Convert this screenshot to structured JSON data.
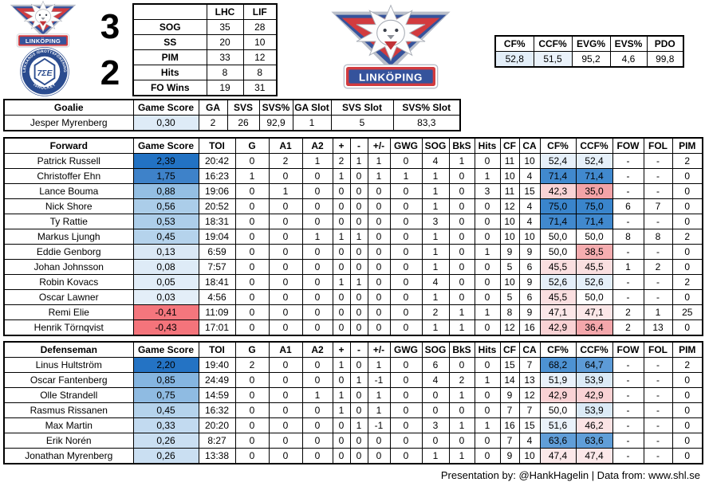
{
  "colors": {
    "scale_blue_strong": "#2272C3",
    "scale_red_strong": "#F4747B",
    "tint_light_blue": "#DEEBF7",
    "brand_red": "#D23B3F",
    "brand_blue": "#35539C",
    "leksands_blue": "#2B4C8F",
    "table_border": "#000000"
  },
  "scoreboard": {
    "home_score": "3",
    "away_score": "2"
  },
  "compare_table": {
    "headers": [
      "",
      "LHC",
      "LIF"
    ],
    "rows": [
      {
        "label": "SOG",
        "lhc": "35",
        "lif": "28"
      },
      {
        "label": "SS",
        "lhc": "20",
        "lif": "10"
      },
      {
        "label": "PIM",
        "lhc": "33",
        "lif": "12"
      },
      {
        "label": "Hits",
        "lhc": "8",
        "lif": "8"
      },
      {
        "label": "FO Wins",
        "lhc": "19",
        "lif": "31"
      }
    ]
  },
  "team_stats": {
    "headers": [
      "CF%",
      "CCF%",
      "EVG%",
      "EVS%",
      "PDO"
    ],
    "values": [
      "52,8",
      "51,5",
      "95,2",
      "4,6",
      "99,8"
    ],
    "value_bgs": [
      "#E3EEF8",
      "#EAF2FA",
      "#FFFFFF",
      "#FFFFFF",
      "#FFFFFF"
    ]
  },
  "goalie_table": {
    "headers": [
      "Goalie",
      "Game Score",
      "GA",
      "SVS",
      "SVS%",
      "GA Slot",
      "SVS Slot",
      "SVS% Slot"
    ],
    "rows": [
      {
        "name": "Jesper Myrenberg",
        "gs": "0,30",
        "gs_bg": "#DEEBF7",
        "values": [
          "2",
          "26",
          "92,9",
          "1",
          "5",
          "83,3"
        ]
      }
    ]
  },
  "skater_headers_common": [
    "Game Score",
    "TOI",
    "G",
    "A1",
    "A2",
    "+",
    "-",
    "+/-",
    "GWG",
    "SOG",
    "BkS",
    "Hits",
    "CF",
    "CA",
    "CF%",
    "CCF%",
    "FOW",
    "FOL",
    "PIM"
  ],
  "forward_table": {
    "title": "Forward",
    "rows": [
      {
        "name": "Patrick Russell",
        "gs": "2,39",
        "gs_bg": "#2272C3",
        "toi": "20:42",
        "g": "0",
        "a1": "2",
        "a2": "1",
        "plus": "2",
        "minus": "1",
        "pm": "1",
        "gwg": "0",
        "sog": "4",
        "bks": "1",
        "hits": "0",
        "cf": "11",
        "ca": "10",
        "cfp": "52,4",
        "cfp_bg": "#E6F0F9",
        "ccfp": "52,4",
        "ccfp_bg": "#E6F0F9",
        "fow": "-",
        "fol": "-",
        "pim": "2"
      },
      {
        "name": "Christoffer Ehn",
        "gs": "1,75",
        "gs_bg": "#3E82C9",
        "toi": "16:23",
        "g": "1",
        "a1": "0",
        "a2": "0",
        "plus": "1",
        "minus": "0",
        "pm": "1",
        "gwg": "1",
        "sog": "1",
        "bks": "0",
        "hits": "1",
        "cf": "10",
        "ca": "4",
        "cfp": "71,4",
        "cfp_bg": "#4189CE",
        "ccfp": "71,4",
        "ccfp_bg": "#4189CE",
        "fow": "-",
        "fol": "-",
        "pim": "0"
      },
      {
        "name": "Lance Bouma",
        "gs": "0,88",
        "gs_bg": "#94BFE3",
        "toi": "19:06",
        "g": "0",
        "a1": "1",
        "a2": "0",
        "plus": "0",
        "minus": "0",
        "pm": "0",
        "gwg": "0",
        "sog": "1",
        "bks": "0",
        "hits": "3",
        "cf": "11",
        "ca": "15",
        "cfp": "42,3",
        "cfp_bg": "#F9D3D5",
        "ccfp": "35,0",
        "ccfp_bg": "#F3A3A7",
        "fow": "-",
        "fol": "-",
        "pim": "0"
      },
      {
        "name": "Nick Shore",
        "gs": "0,56",
        "gs_bg": "#ABCDE9",
        "toi": "20:52",
        "g": "0",
        "a1": "0",
        "a2": "0",
        "plus": "0",
        "minus": "0",
        "pm": "0",
        "gwg": "0",
        "sog": "1",
        "bks": "0",
        "hits": "0",
        "cf": "12",
        "ca": "4",
        "cfp": "75,0",
        "cfp_bg": "#3A85CC",
        "ccfp": "75,0",
        "ccfp_bg": "#3A85CC",
        "fow": "6",
        "fol": "7",
        "pim": "0"
      },
      {
        "name": "Ty Rattie",
        "gs": "0,53",
        "gs_bg": "#ADCEEA",
        "toi": "18:31",
        "g": "0",
        "a1": "0",
        "a2": "0",
        "plus": "0",
        "minus": "0",
        "pm": "0",
        "gwg": "0",
        "sog": "3",
        "bks": "0",
        "hits": "0",
        "cf": "10",
        "ca": "4",
        "cfp": "71,4",
        "cfp_bg": "#4189CE",
        "ccfp": "71,4",
        "ccfp_bg": "#4189CE",
        "fow": "-",
        "fol": "-",
        "pim": "0"
      },
      {
        "name": "Markus Ljungh",
        "gs": "0,45",
        "gs_bg": "#B5D3EC",
        "toi": "19:04",
        "g": "0",
        "a1": "0",
        "a2": "1",
        "plus": "1",
        "minus": "1",
        "pm": "0",
        "gwg": "0",
        "sog": "1",
        "bks": "0",
        "hits": "0",
        "cf": "10",
        "ca": "10",
        "cfp": "50,0",
        "cfp_bg": "#FFFFFF",
        "ccfp": "50,0",
        "ccfp_bg": "#FFFFFF",
        "fow": "8",
        "fol": "8",
        "pim": "2"
      },
      {
        "name": "Eddie Genborg",
        "gs": "0,13",
        "gs_bg": "#DAE8F5",
        "toi": "6:59",
        "g": "0",
        "a1": "0",
        "a2": "0",
        "plus": "0",
        "minus": "0",
        "pm": "0",
        "gwg": "0",
        "sog": "1",
        "bks": "0",
        "hits": "1",
        "cf": "9",
        "ca": "9",
        "cfp": "50,0",
        "cfp_bg": "#FFFFFF",
        "ccfp": "38,5",
        "ccfp_bg": "#F5ADB0",
        "fow": "-",
        "fol": "-",
        "pim": "0"
      },
      {
        "name": "Johan Johnsson",
        "gs": "0,08",
        "gs_bg": "#DEEBF7",
        "toi": "7:57",
        "g": "0",
        "a1": "0",
        "a2": "0",
        "plus": "0",
        "minus": "0",
        "pm": "0",
        "gwg": "0",
        "sog": "1",
        "bks": "0",
        "hits": "0",
        "cf": "5",
        "ca": "6",
        "cfp": "45,5",
        "cfp_bg": "#FADFE0",
        "ccfp": "45,5",
        "ccfp_bg": "#FADFE0",
        "fow": "1",
        "fol": "2",
        "pim": "0"
      },
      {
        "name": "Robin Kovacs",
        "gs": "0,05",
        "gs_bg": "#E1EDF8",
        "toi": "18:41",
        "g": "0",
        "a1": "0",
        "a2": "0",
        "plus": "1",
        "minus": "1",
        "pm": "0",
        "gwg": "0",
        "sog": "4",
        "bks": "0",
        "hits": "0",
        "cf": "10",
        "ca": "9",
        "cfp": "52,6",
        "cfp_bg": "#E5EFF9",
        "ccfp": "52,6",
        "ccfp_bg": "#E5EFF9",
        "fow": "-",
        "fol": "-",
        "pim": "2"
      },
      {
        "name": "Oscar Lawner",
        "gs": "0,03",
        "gs_bg": "#E3EEF8",
        "toi": "4:56",
        "g": "0",
        "a1": "0",
        "a2": "0",
        "plus": "0",
        "minus": "0",
        "pm": "0",
        "gwg": "0",
        "sog": "1",
        "bks": "0",
        "hits": "0",
        "cf": "5",
        "ca": "6",
        "cfp": "45,5",
        "cfp_bg": "#FADFE0",
        "ccfp": "50,0",
        "ccfp_bg": "#FFFFFF",
        "fow": "-",
        "fol": "-",
        "pim": "0"
      },
      {
        "name": "Remi Elie",
        "gs": "-0,41",
        "gs_bg": "#F4767D",
        "toi": "11:09",
        "g": "0",
        "a1": "0",
        "a2": "0",
        "plus": "0",
        "minus": "0",
        "pm": "0",
        "gwg": "0",
        "sog": "2",
        "bks": "1",
        "hits": "1",
        "cf": "8",
        "ca": "9",
        "cfp": "47,1",
        "cfp_bg": "#FBE7E8",
        "ccfp": "47,1",
        "ccfp_bg": "#FBE7E8",
        "fow": "2",
        "fol": "1",
        "pim": "25"
      },
      {
        "name": "Henrik Törnqvist",
        "gs": "-0,43",
        "gs_bg": "#F4747B",
        "toi": "17:01",
        "g": "0",
        "a1": "0",
        "a2": "0",
        "plus": "0",
        "minus": "0",
        "pm": "0",
        "gwg": "0",
        "sog": "1",
        "bks": "1",
        "hits": "0",
        "cf": "12",
        "ca": "16",
        "cfp": "42,9",
        "cfp_bg": "#F9D2D4",
        "ccfp": "36,4",
        "ccfp_bg": "#F4A7AB",
        "fow": "2",
        "fol": "13",
        "pim": "0"
      }
    ]
  },
  "defense_table": {
    "title": "Defenseman",
    "rows": [
      {
        "name": "Linus Hultström",
        "gs": "2,20",
        "gs_bg": "#2473C4",
        "toi": "19:40",
        "g": "2",
        "a1": "0",
        "a2": "0",
        "plus": "1",
        "minus": "0",
        "pm": "1",
        "gwg": "0",
        "sog": "6",
        "bks": "0",
        "hits": "0",
        "cf": "15",
        "ca": "7",
        "cfp": "68,2",
        "cfp_bg": "#4D92D3",
        "ccfp": "64,7",
        "ccfp_bg": "#5D9BD7",
        "fow": "-",
        "fol": "-",
        "pim": "2"
      },
      {
        "name": "Oscar Fantenberg",
        "gs": "0,85",
        "gs_bg": "#85B5E0",
        "toi": "24:49",
        "g": "0",
        "a1": "0",
        "a2": "0",
        "plus": "0",
        "minus": "1",
        "pm": "-1",
        "gwg": "0",
        "sog": "4",
        "bks": "2",
        "hits": "1",
        "cf": "14",
        "ca": "13",
        "cfp": "51,9",
        "cfp_bg": "#E9F1FA",
        "ccfp": "53,9",
        "ccfp_bg": "#DCEAF6",
        "fow": "-",
        "fol": "-",
        "pim": "0"
      },
      {
        "name": "Olle Strandell",
        "gs": "0,75",
        "gs_bg": "#8FBBE2",
        "toi": "14:59",
        "g": "0",
        "a1": "0",
        "a2": "1",
        "plus": "1",
        "minus": "0",
        "pm": "1",
        "gwg": "0",
        "sog": "0",
        "bks": "1",
        "hits": "0",
        "cf": "9",
        "ca": "12",
        "cfp": "42,9",
        "cfp_bg": "#F9D2D4",
        "ccfp": "42,9",
        "ccfp_bg": "#F9D2D4",
        "fow": "-",
        "fol": "-",
        "pim": "0"
      },
      {
        "name": "Rasmus Rissanen",
        "gs": "0,45",
        "gs_bg": "#B5D3EC",
        "toi": "16:32",
        "g": "0",
        "a1": "0",
        "a2": "0",
        "plus": "1",
        "minus": "0",
        "pm": "1",
        "gwg": "0",
        "sog": "0",
        "bks": "0",
        "hits": "0",
        "cf": "7",
        "ca": "7",
        "cfp": "50,0",
        "cfp_bg": "#FFFFFF",
        "ccfp": "53,9",
        "ccfp_bg": "#DCEAF6",
        "fow": "-",
        "fol": "-",
        "pim": "0"
      },
      {
        "name": "Max Martin",
        "gs": "0,33",
        "gs_bg": "#C2DAF0",
        "toi": "20:20",
        "g": "0",
        "a1": "0",
        "a2": "0",
        "plus": "0",
        "minus": "1",
        "pm": "-1",
        "gwg": "0",
        "sog": "3",
        "bks": "1",
        "hits": "1",
        "cf": "16",
        "ca": "15",
        "cfp": "51,6",
        "cfp_bg": "#EAF2FA",
        "ccfp": "46,2",
        "ccfp_bg": "#FAE3E4",
        "fow": "-",
        "fol": "-",
        "pim": "0"
      },
      {
        "name": "Erik Norén",
        "gs": "0,26",
        "gs_bg": "#CADFF2",
        "toi": "8:27",
        "g": "0",
        "a1": "0",
        "a2": "0",
        "plus": "0",
        "minus": "0",
        "pm": "0",
        "gwg": "0",
        "sog": "0",
        "bks": "0",
        "hits": "0",
        "cf": "7",
        "ca": "4",
        "cfp": "63,6",
        "cfp_bg": "#609ED8",
        "ccfp": "63,6",
        "ccfp_bg": "#609ED8",
        "fow": "-",
        "fol": "-",
        "pim": "0"
      },
      {
        "name": "Jonathan Myrenberg",
        "gs": "0,26",
        "gs_bg": "#CADFF2",
        "toi": "13:38",
        "g": "0",
        "a1": "0",
        "a2": "0",
        "plus": "0",
        "minus": "0",
        "pm": "0",
        "gwg": "0",
        "sog": "1",
        "bks": "1",
        "hits": "0",
        "cf": "9",
        "ca": "10",
        "cfp": "47,4",
        "cfp_bg": "#FBE8E9",
        "ccfp": "47,4",
        "ccfp_bg": "#FBE8E9",
        "fow": "-",
        "fol": "-",
        "pim": "0"
      }
    ]
  },
  "footer": {
    "text": "Presentation by: @HankHagelin | Data from: www.shl.se"
  },
  "logos": {
    "linkoping": {
      "banner": "LINKÖPING"
    },
    "leksands": {
      "ring_top": "LEKSANDS IDROTTSFÖRENING",
      "ring_bottom": "ISHOCKEY",
      "monogram": "7ΣE"
    }
  }
}
